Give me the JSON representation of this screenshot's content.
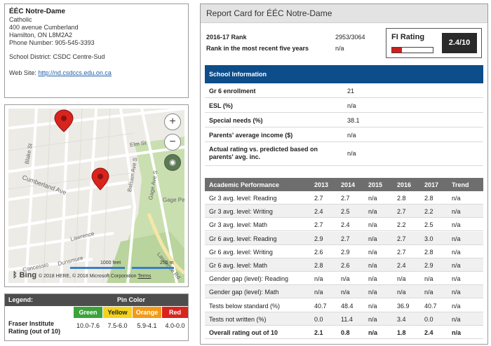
{
  "school": {
    "name": "ÉÉC Notre-Dame",
    "type": "Catholic",
    "address1": "400 avenue Cumberland",
    "address2": "Hamilton, ON L8M2A2",
    "phone": "Phone Number: 905-545-3393",
    "district": "School District: CSDC Centre-Sud",
    "website_label": "Web Site",
    "website_url": "http://nd.csdccs.edu.on.ca"
  },
  "map": {
    "streets": [
      "Elm St",
      "Cumberland Ave",
      "Balsam Ave S",
      "Gage Ave S",
      "Gage Pe",
      "Lawrence Rd",
      "Concessio",
      "Blake St",
      "Dunsmure",
      "Lawrence"
    ],
    "zoom_in": "+",
    "zoom_out": "−",
    "scale_feet": "1000 feet",
    "scale_meters": "250 m",
    "attribution_brand": "Bing",
    "copyright": "© 2018 HERE, © 2018 Microsoft Corporation",
    "terms": "Terms"
  },
  "legend": {
    "title": "Legend:",
    "pin_color_label": "Pin Color",
    "rating_label": "Fraser Institute Rating (out of 10)",
    "colors": [
      {
        "name": "Green",
        "range": "10.0-7.6",
        "hex": "#3aa43a"
      },
      {
        "name": "Yellow",
        "range": "7.5-6.0",
        "hex": "#f2d21b"
      },
      {
        "name": "Orange",
        "range": "5.9-4.1",
        "hex": "#f29a17"
      },
      {
        "name": "Red",
        "range": "4.0-0.0",
        "hex": "#d9241e"
      }
    ]
  },
  "report": {
    "title": "Report Card for ÉÉC Notre-Dame",
    "rank_label": "2016-17 Rank",
    "rank_value": "2953/3064",
    "recent_label": "Rank in the most recent five years",
    "recent_value": "n/a",
    "fi_label": "FI Rating",
    "fi_value": "2.4/10",
    "fi_fraction": 0.24,
    "accent_red": "#cc1f1f",
    "header_blue": "#0d4d8a"
  },
  "school_info": {
    "title": "School Information",
    "rows": [
      {
        "label": "Gr 6 enrollment",
        "value": "21"
      },
      {
        "label": "ESL (%)",
        "value": "n/a"
      },
      {
        "label": "Special needs (%)",
        "value": "38.1"
      },
      {
        "label": "Parents' average income ($)",
        "value": "n/a"
      },
      {
        "label": "Actual rating vs. predicted based on parents' avg. inc.",
        "value": "n/a"
      }
    ]
  },
  "performance": {
    "headers": [
      "Academic Performance",
      "2013",
      "2014",
      "2015",
      "2016",
      "2017",
      "Trend"
    ],
    "rows": [
      [
        "Gr 3 avg. level: Reading",
        "2.7",
        "2.7",
        "n/a",
        "2.8",
        "2.8",
        "n/a"
      ],
      [
        "Gr 3 avg. level: Writing",
        "2.4",
        "2.5",
        "n/a",
        "2.7",
        "2.2",
        "n/a"
      ],
      [
        "Gr 3 avg. level: Math",
        "2.7",
        "2.4",
        "n/a",
        "2.2",
        "2.5",
        "n/a"
      ],
      [
        "Gr 6 avg. level: Reading",
        "2.9",
        "2.7",
        "n/a",
        "2.7",
        "3.0",
        "n/a"
      ],
      [
        "Gr 6 avg. level: Writing",
        "2.6",
        "2.9",
        "n/a",
        "2.7",
        "2.8",
        "n/a"
      ],
      [
        "Gr 6 avg. level: Math",
        "2.8",
        "2.6",
        "n/a",
        "2.4",
        "2.9",
        "n/a"
      ],
      [
        "Gender gap (level): Reading",
        "n/a",
        "n/a",
        "n/a",
        "n/a",
        "n/a",
        "n/a"
      ],
      [
        "Gender gap (level): Math",
        "n/a",
        "n/a",
        "n/a",
        "n/a",
        "n/a",
        "n/a"
      ],
      [
        "Tests below standard (%)",
        "40.7",
        "48.4",
        "n/a",
        "36.9",
        "40.7",
        "n/a"
      ],
      [
        "Tests not written (%)",
        "0.0",
        "11.4",
        "n/a",
        "3.4",
        "0.0",
        "n/a"
      ],
      [
        "Overall rating out of 10",
        "2.1",
        "0.8",
        "n/a",
        "1.8",
        "2.4",
        "n/a"
      ]
    ]
  }
}
